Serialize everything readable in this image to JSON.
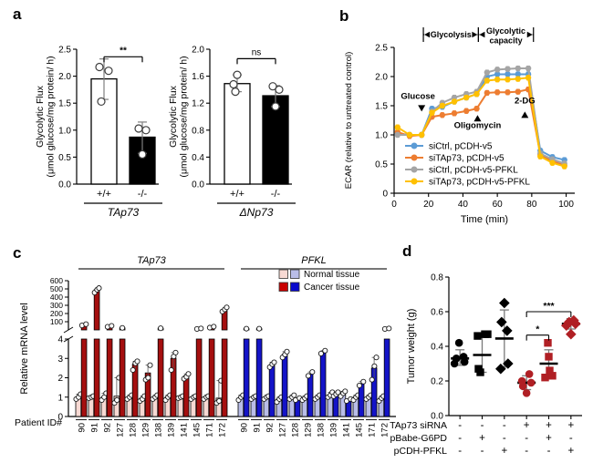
{
  "panels": {
    "a": {
      "label": "a"
    },
    "b": {
      "label": "b"
    },
    "c": {
      "label": "c"
    },
    "d": {
      "label": "d"
    }
  },
  "chart_data": [
    {
      "id": "a1",
      "type": "bar",
      "ylabel1": "Glycolytic Flux",
      "ylabel2": "(μmol glucose/mg protein/ h)",
      "ymax": 2.5,
      "yticks": [
        "0.0",
        "0.5",
        "1.0",
        "1.5",
        "2.0",
        "2.5"
      ],
      "categories": [
        "+/+",
        "-/-"
      ],
      "group": "TAp73",
      "sig": "**",
      "sig_y": 2.36,
      "bars": [
        {
          "value": 1.95,
          "err_lo": 1.57,
          "err_hi": 2.32,
          "fill": "#ffffff",
          "points": [
            2.17,
            2.1,
            1.53
          ],
          "jitter": [
            -5,
            5,
            -3
          ]
        },
        {
          "value": 0.87,
          "err_lo": 0.57,
          "err_hi": 1.15,
          "fill": "#000000",
          "points": [
            1.03,
            1.0,
            0.55
          ],
          "jitter": [
            -4,
            4,
            0
          ]
        }
      ]
    },
    {
      "id": "a2",
      "type": "bar",
      "ylabel1": "Glycolytic Flux",
      "ylabel2": "(μmol glucose/mg protein/ h)",
      "ymax": 2.0,
      "yticks": [
        "0.0",
        "0.4",
        "0.8",
        "1.2",
        "1.6",
        "2.0"
      ],
      "categories": [
        "+/+",
        "-/-"
      ],
      "group": "ΔNp73",
      "sig": "ns",
      "sig_y": 1.86,
      "bars": [
        {
          "value": 1.49,
          "err_lo": 1.37,
          "err_hi": 1.62,
          "fill": "#ffffff",
          "points": [
            1.62,
            1.48,
            1.37
          ],
          "jitter": [
            0,
            -4,
            -2
          ]
        },
        {
          "value": 1.31,
          "err_lo": 1.15,
          "err_hi": 1.46,
          "fill": "#000000",
          "points": [
            1.45,
            1.4,
            1.15
          ],
          "jitter": [
            -3,
            4,
            0
          ]
        }
      ]
    },
    {
      "id": "b",
      "type": "line",
      "xlabel": "Time (min)",
      "ylabel": "ECAR (relative to untreated control)",
      "xticks": [
        0,
        20,
        40,
        60,
        80,
        100
      ],
      "yticks": [
        "0",
        "0.5",
        "1.0",
        "1.5",
        "2.0",
        "2.5"
      ],
      "xmax": 105,
      "ymax": 2.5,
      "x": [
        2,
        9,
        16,
        22,
        28,
        35,
        42,
        48,
        54,
        60,
        66,
        72,
        78,
        85,
        92,
        99
      ],
      "series": [
        {
          "name": "siCtrl, pCDH-v5",
          "color": "#5b9bd5",
          "values": [
            1.02,
            1.0,
            1.0,
            1.45,
            1.48,
            1.57,
            1.64,
            1.7,
            2.0,
            2.04,
            2.04,
            2.04,
            2.04,
            0.73,
            0.62,
            0.57
          ]
        },
        {
          "name": "siTAp73, pCDH-v5",
          "color": "#ed7d31",
          "values": [
            1.05,
            0.98,
            1.0,
            1.31,
            1.34,
            1.37,
            1.41,
            1.45,
            1.72,
            1.73,
            1.73,
            1.74,
            1.78,
            0.66,
            0.55,
            0.48
          ]
        },
        {
          "name": "siCtrl, pCDH-v5-PFKL",
          "color": "#a5a5a5",
          "values": [
            1.0,
            1.0,
            1.0,
            1.4,
            1.55,
            1.64,
            1.7,
            1.74,
            2.07,
            2.12,
            2.13,
            2.14,
            2.14,
            0.68,
            0.58,
            0.51
          ]
        },
        {
          "name": "siTAp73, pCDH-v5-PFKL",
          "color": "#ffc000",
          "values": [
            1.13,
            1.0,
            1.0,
            1.38,
            1.5,
            1.57,
            1.64,
            1.7,
            1.93,
            1.95,
            1.95,
            1.96,
            1.98,
            0.63,
            0.52,
            0.46
          ]
        }
      ],
      "injections": [
        {
          "text": "Glucose",
          "x": 16,
          "dir": "down",
          "tip_y": 1.4,
          "text_y": 1.62,
          "text_dx": -4
        },
        {
          "text": "Oligomycin",
          "x": 48.5,
          "dir": "up",
          "tip_y": 1.34,
          "text_y": 1.12,
          "text_dx": 0
        },
        {
          "text": "2-DG",
          "x": 76,
          "dir": "up",
          "tip_y": 1.4,
          "text_y": 1.54,
          "text_dx": 0
        }
      ],
      "phases": [
        {
          "x1": 17,
          "x2": 49,
          "lines": [
            "Glycolysis"
          ]
        },
        {
          "x1": 49,
          "x2": 81,
          "lines": [
            "Glycolytic",
            "capacity"
          ]
        }
      ]
    },
    {
      "id": "c",
      "type": "bar",
      "subtype": "broken-axis-grouped",
      "ylabel": "Relative mRNA level",
      "xlabel": "Patient ID#",
      "patients": [
        "90",
        "91",
        "92",
        "127",
        "128",
        "129",
        "138",
        "139",
        "141",
        "145",
        "171",
        "172"
      ],
      "upper_ticks": [
        100,
        200,
        300,
        400,
        500,
        600
      ],
      "lower_ticks": [
        0,
        1,
        2,
        3,
        4
      ],
      "upper_max": 600,
      "lower_max": 4,
      "legend": [
        {
          "label": "Normal tissue",
          "colors": [
            "#f7d9d3",
            "#b9bde8"
          ]
        },
        {
          "label": "Cancer tissue",
          "colors": [
            "#c90000",
            "#0a0acd"
          ]
        }
      ],
      "genes": [
        {
          "name": "TAp73",
          "normal_color": "#f7d9d3",
          "cancer_color": "#a50f0f",
          "normal": {
            "values": [
              1.0,
              1.0,
              1.0,
              1.05,
              1.0,
              0.95,
              1.0,
              1.0,
              1.0,
              1.0,
              1.0,
              0.95
            ],
            "points": [
              [
                0.9,
                1.0,
                1.15
              ],
              [
                0.95,
                1.0,
                1.05
              ],
              [
                0.85,
                1.0,
                1.2
              ],
              [
                0.7,
                0.85,
                2.0
              ],
              [
                0.9,
                1.0,
                1.1
              ],
              [
                0.8,
                0.9,
                1.05
              ],
              [
                0.9,
                1.0,
                1.1
              ],
              [
                0.85,
                1.0,
                1.1
              ],
              [
                0.95,
                1.0,
                1.05
              ],
              [
                0.9,
                1.0,
                1.05
              ],
              [
                0.9,
                1.0,
                1.05
              ],
              [
                0.7,
                0.8,
                1.85
              ]
            ]
          },
          "cancer": {
            "values": [
              65,
              490,
              45,
              25,
              2.7,
              2.25,
              20,
              3.0,
              2.1,
              15,
              35,
              250
            ],
            "points": [
              [
                55,
                70
              ],
              [
                455,
                490,
                510
              ],
              [
                38,
                50
              ],
              [
                25
              ],
              [
                2.4,
                2.75,
                2.85
              ],
              [
                1.9,
                2.0,
                2.65
              ],
              [
                20
              ],
              [
                2.4,
                3.1,
                3.3
              ],
              [
                1.95,
                2.05,
                2.2
              ],
              [
                12,
                18
              ],
              [
                28,
                40
              ],
              [
                225,
                250,
                275
              ]
            ]
          }
        },
        {
          "name": "PFKL",
          "normal_color": "#b9bde8",
          "cancer_color": "#1414c8",
          "normal": {
            "values": [
              0.95,
              1.0,
              1.0,
              0.9,
              1.0,
              0.95,
              1.0,
              1.1,
              1.15,
              1.0,
              1.0,
              0.95
            ],
            "points": [
              [
                0.85,
                1.0,
                1.1
              ],
              [
                0.9,
                1.0,
                1.05
              ],
              [
                0.9,
                1.0,
                1.05
              ],
              [
                0.75,
                0.9,
                1.0
              ],
              [
                0.9,
                1.0,
                1.1
              ],
              [
                0.85,
                0.95,
                1.05
              ],
              [
                0.9,
                1.0,
                1.1
              ],
              [
                1.0,
                1.1,
                1.25
              ],
              [
                1.05,
                1.2,
                1.3
              ],
              [
                0.85,
                1.0,
                1.1
              ],
              [
                0.9,
                1.0,
                1.1
              ],
              [
                0.8,
                0.95,
                1.05
              ]
            ]
          },
          "cancer": {
            "values": [
              15,
              15,
              2.65,
              3.2,
              0.92,
              2.2,
              3.3,
              1.1,
              0.88,
              1.7,
              2.5,
              15
            ],
            "points": [
              [
                15
              ],
              [
                15
              ],
              [
                2.55,
                2.7,
                2.8
              ],
              [
                3.05,
                3.2,
                3.35
              ],
              [
                0.85,
                0.95
              ],
              [
                2.1,
                2.3
              ],
              [
                3.25,
                3.4
              ],
              [
                1.05,
                1.15,
                1.25
              ],
              [
                0.8,
                0.9
              ],
              [
                1.6,
                1.8
              ],
              [
                1.9,
                2.6,
                3.05
              ],
              [
                12,
                18
              ]
            ]
          }
        }
      ]
    },
    {
      "id": "d",
      "type": "scatter",
      "ylabel": "Tumor weight (g)",
      "yticks": [
        "0.0",
        "0.2",
        "0.4",
        "0.6",
        "0.8"
      ],
      "ymax": 0.8,
      "groups": [
        {
          "marker": "circle",
          "color": "#000000",
          "mean": 0.33,
          "err_lo": 0.29,
          "err_hi": 0.38,
          "points": [
            0.3,
            0.31,
            0.33,
            0.34,
            0.42
          ],
          "jitter": [
            -6,
            5,
            -4,
            4,
            -1
          ]
        },
        {
          "marker": "square",
          "color": "#000000",
          "mean": 0.35,
          "err_lo": 0.25,
          "err_hi": 0.46,
          "points": [
            0.25,
            0.27,
            0.46,
            0.47,
            0.47
          ],
          "jitter": [
            -2,
            -4,
            -5,
            3,
            6
          ]
        },
        {
          "marker": "diamond",
          "color": "#000000",
          "mean": 0.445,
          "err_lo": 0.28,
          "err_hi": 0.61,
          "points": [
            0.27,
            0.3,
            0.49,
            0.54,
            0.65
          ],
          "jitter": [
            -4,
            4,
            3,
            -3,
            0
          ]
        },
        {
          "marker": "circle",
          "color": "#b01f24",
          "mean": 0.19,
          "err_lo": 0.15,
          "err_hi": 0.23,
          "points": [
            0.13,
            0.17,
            0.19,
            0.2,
            0.24
          ],
          "jitter": [
            0,
            -4,
            5,
            -5,
            3
          ]
        },
        {
          "marker": "square",
          "color": "#b01f24",
          "mean": 0.3,
          "err_lo": 0.22,
          "err_hi": 0.38,
          "points": [
            0.22,
            0.23,
            0.26,
            0.34,
            0.42
          ],
          "jitter": [
            -4,
            4,
            1,
            0,
            -1
          ]
        },
        {
          "marker": "diamond",
          "color": "#b01f24",
          "mean": 0.53,
          "err_lo": 0.5,
          "err_hi": 0.56,
          "points": [
            0.47,
            0.52,
            0.53,
            0.54,
            0.55
          ],
          "jitter": [
            0,
            -5,
            5,
            -2,
            3
          ]
        }
      ],
      "sig": [
        {
          "i1": 3,
          "i2": 4,
          "y": 0.465,
          "label": "*"
        },
        {
          "i1": 3,
          "i2": 5,
          "y": 0.6,
          "label": "***"
        }
      ],
      "condition_rows": [
        {
          "label": "TAp73 siRNA",
          "signs": [
            "-",
            "-",
            "-",
            "+",
            "+",
            "+"
          ]
        },
        {
          "label": "pBabe-G6PD",
          "signs": [
            "-",
            "+",
            "-",
            "-",
            "+",
            "-"
          ]
        },
        {
          "label": "pCDH-PFKL",
          "signs": [
            "-",
            "-",
            "+",
            "-",
            "-",
            "+"
          ]
        }
      ]
    }
  ]
}
